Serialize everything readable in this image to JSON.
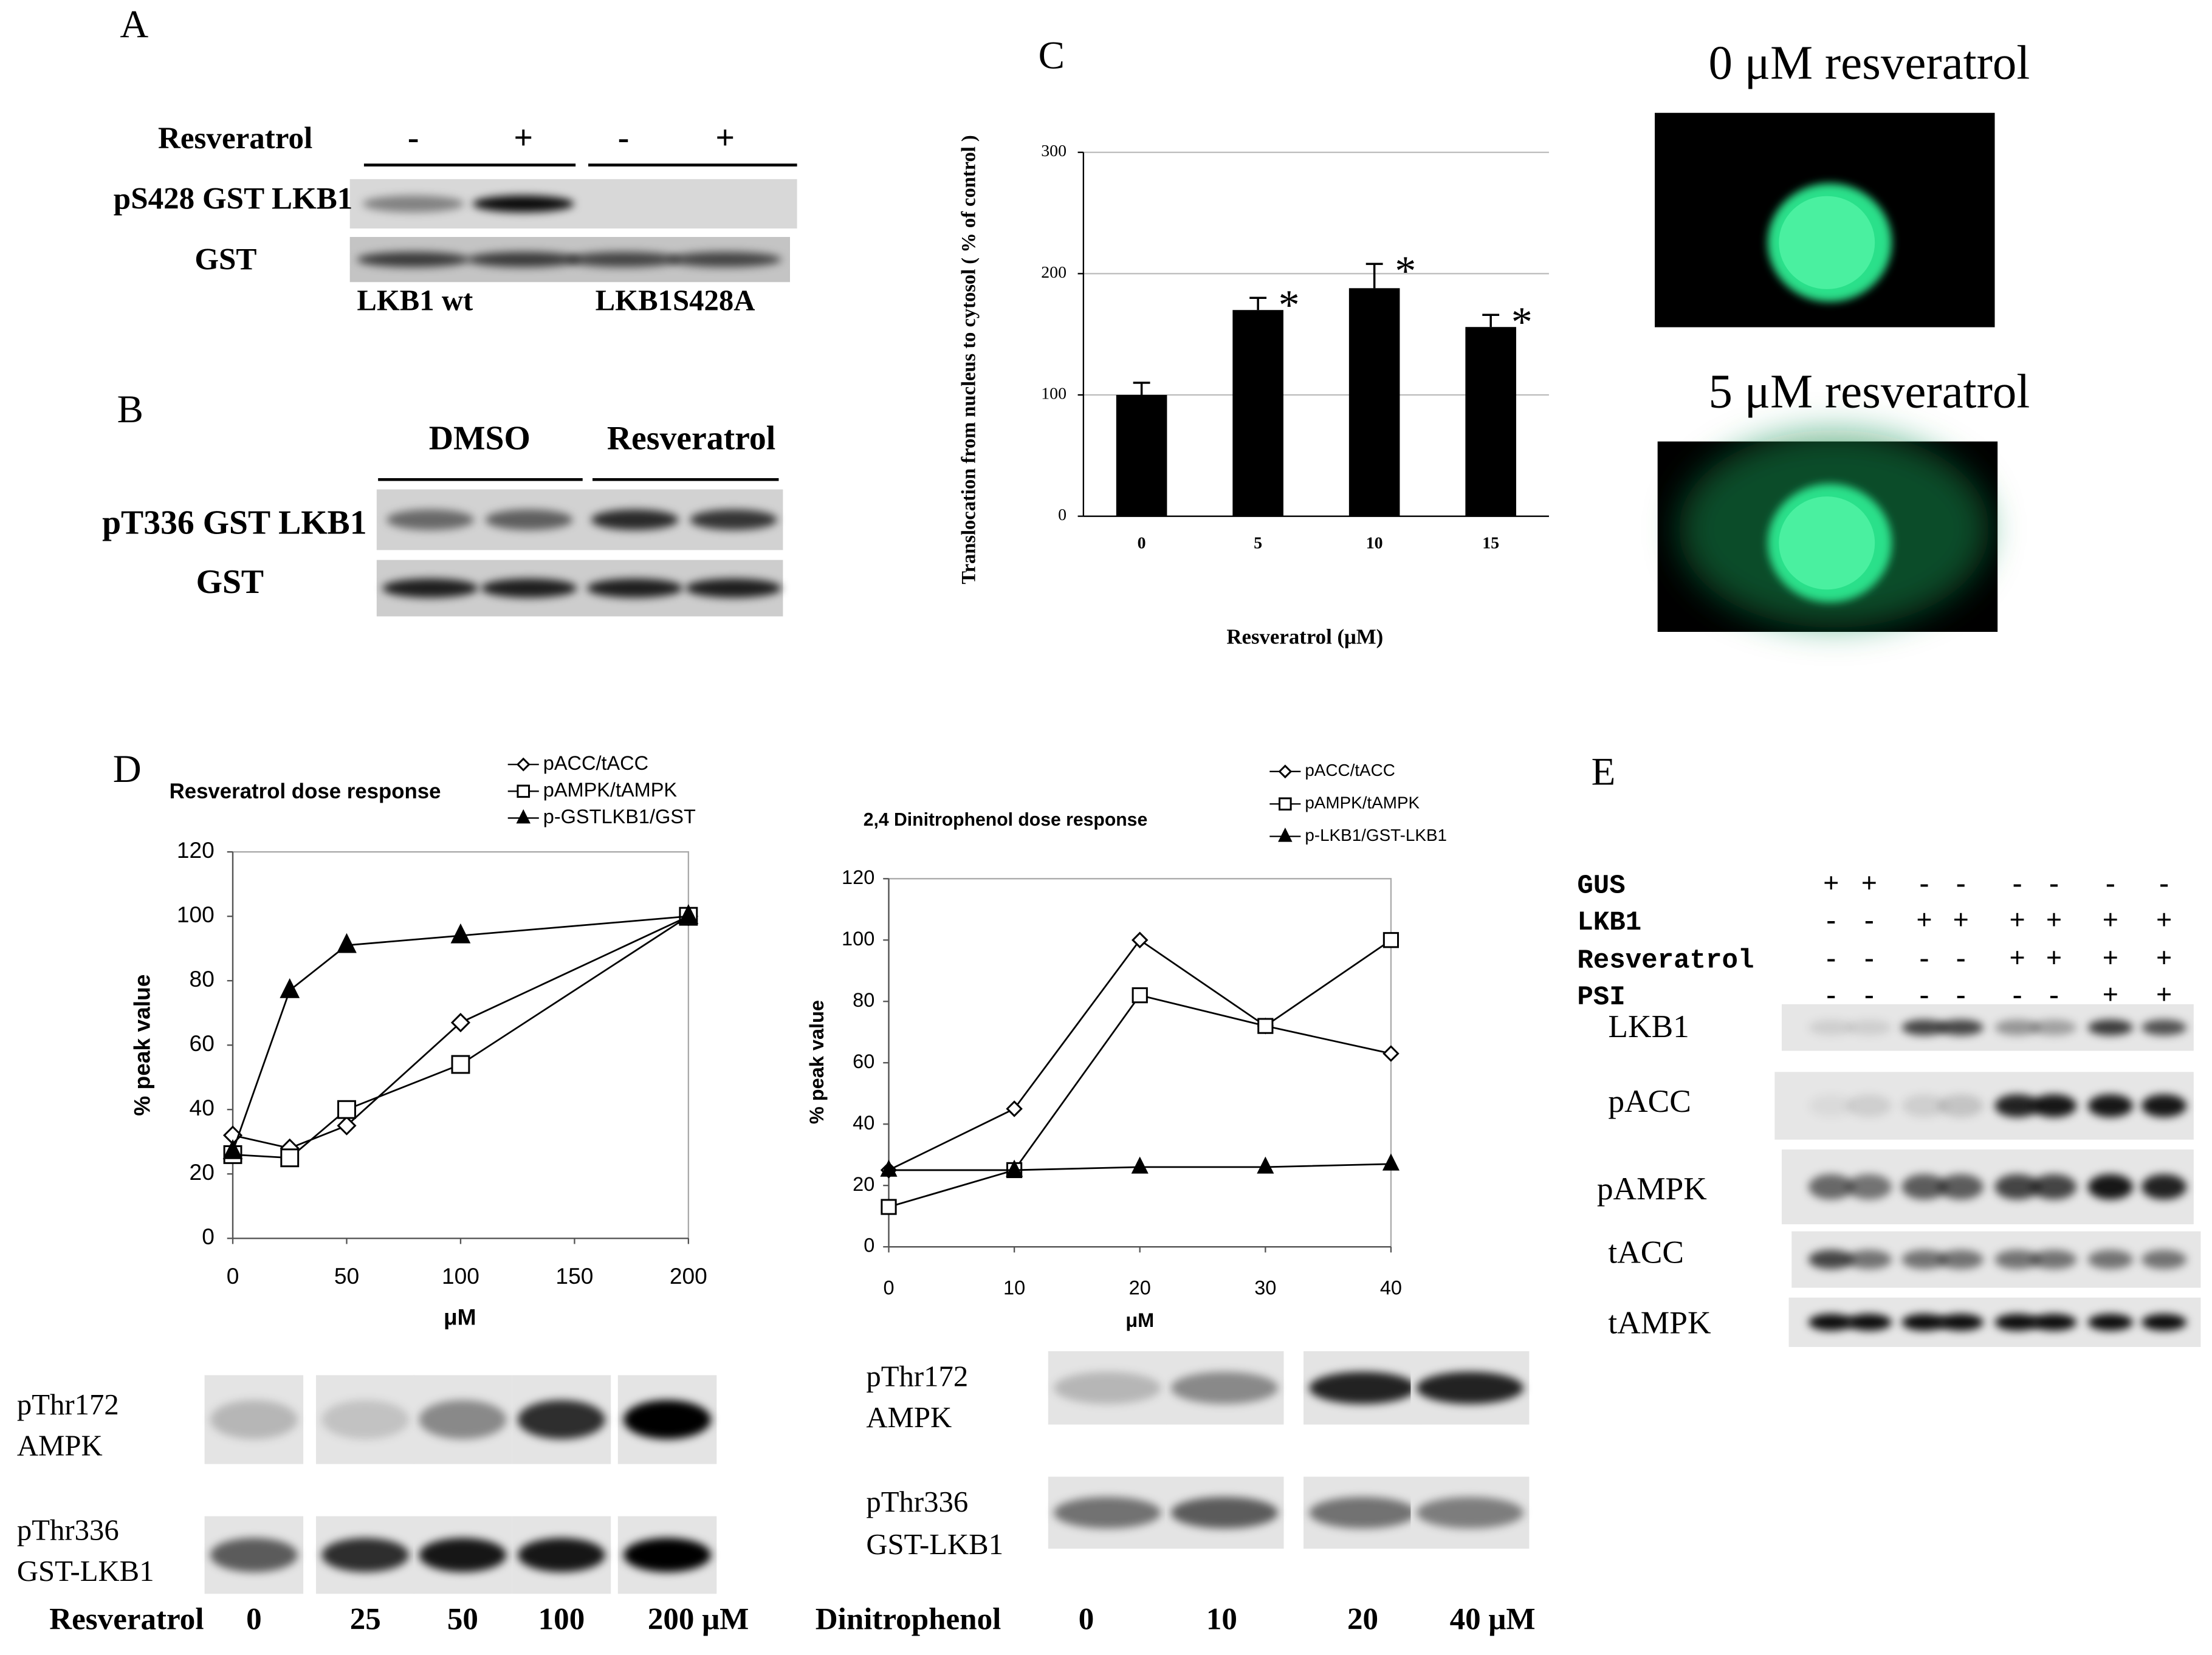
{
  "chart_data": [
    {
      "type": "bar",
      "x_label": "Resveratrol (μM)",
      "y_label": "Translocation from nucleus to cytosol ( % of control )",
      "categories": [
        "0",
        "5",
        "10",
        "15"
      ],
      "values": [
        100,
        170,
        188,
        156
      ],
      "errors": [
        10,
        10,
        20,
        10
      ],
      "annotations": [
        null,
        "*",
        "*",
        "*"
      ],
      "color": "#000000",
      "ylim": [
        0,
        300
      ],
      "yticks": [
        0,
        100,
        200,
        300
      ],
      "grid": true
    },
    {
      "type": "line",
      "title": "Resveratrol dose response",
      "x_label": "μM",
      "y_label": "% peak value",
      "x": [
        0,
        25,
        50,
        100,
        200
      ],
      "xlim": [
        0,
        200
      ],
      "xticks": [
        0,
        50,
        100,
        150,
        200
      ],
      "ylim": [
        0,
        120
      ],
      "yticks": [
        0,
        20,
        40,
        60,
        80,
        100,
        120
      ],
      "grid": false,
      "legend": "top-right",
      "series": [
        {
          "name": "pACC/tACC",
          "color": "#000000",
          "marker": "diamond",
          "values": [
            32,
            28,
            35,
            67,
            100
          ]
        },
        {
          "name": "pAMPK/tAMPK",
          "color": "#000000",
          "marker": "square",
          "values": [
            26,
            25,
            40,
            54,
            100
          ]
        },
        {
          "name": "p-GSTLKB1/GST",
          "color": "#000000",
          "marker": "triangle",
          "values": [
            27,
            77,
            91,
            94,
            100
          ]
        }
      ]
    },
    {
      "type": "line",
      "title": "2,4 Dinitrophenol dose response",
      "x_label": "μM",
      "y_label": "% peak value",
      "x": [
        0,
        10,
        20,
        30,
        40
      ],
      "xlim": [
        0,
        40
      ],
      "xticks": [
        0,
        10,
        20,
        30,
        40
      ],
      "ylim": [
        0,
        120
      ],
      "yticks": [
        0,
        20,
        40,
        60,
        80,
        100,
        120
      ],
      "grid": false,
      "legend": "top-right",
      "series": [
        {
          "name": "pACC/tACC",
          "color": "#000000",
          "marker": "diamond",
          "values": [
            25,
            45,
            100,
            72,
            63
          ]
        },
        {
          "name": "pAMPK/tAMPK",
          "color": "#000000",
          "marker": "square",
          "values": [
            13,
            25,
            82,
            72,
            100
          ]
        },
        {
          "name": "p-LKB1/GST-LKB1",
          "color": "#000000",
          "marker": "triangle",
          "values": [
            25,
            25,
            26,
            26,
            27
          ]
        }
      ]
    }
  ],
  "panel_labels": [
    "A",
    "B",
    "C",
    "D",
    "E"
  ],
  "panel_a": {
    "treatment": "Resveratrol",
    "lanes": [
      "-",
      "+",
      "-",
      "+"
    ],
    "rows": [
      "pS428 GST LKB1",
      "GST"
    ],
    "groups": [
      "LKB1 wt",
      "LKB1S428A"
    ]
  },
  "panel_b": {
    "groups": [
      "DMSO",
      "Resveratrol"
    ],
    "rows": [
      "pT336 GST LKB1",
      "GST"
    ]
  },
  "panel_c_images": [
    "0 μM resveratrol",
    "5 μM resveratrol"
  ],
  "panel_d_blots": [
    {
      "rows": [
        [
          "pThr172",
          "AMPK"
        ],
        [
          "pThr336",
          "GST-LKB1"
        ]
      ],
      "treatment": "Resveratrol",
      "lanes": [
        "0",
        "25",
        "50",
        "100",
        "200 μM"
      ]
    },
    {
      "rows": [
        [
          "pThr172",
          "AMPK"
        ],
        [
          "pThr336",
          "GST-LKB1"
        ]
      ],
      "treatment": "Dinitrophenol",
      "lanes": [
        "0",
        "10",
        "20",
        "40 μM"
      ]
    }
  ],
  "panel_e": {
    "conditions": [
      {
        "name": "GUS",
        "signs": [
          "+",
          "+",
          "-",
          "-",
          "-",
          "-",
          "-",
          "-"
        ]
      },
      {
        "name": "LKB1",
        "signs": [
          "-",
          "-",
          "+",
          "+",
          "+",
          "+",
          "+",
          "+"
        ]
      },
      {
        "name": "Resveratrol",
        "signs": [
          "-",
          "-",
          "-",
          "-",
          "+",
          "+",
          "+",
          "+"
        ]
      },
      {
        "name": "PSI",
        "signs": [
          "-",
          "-",
          "-",
          "-",
          "-",
          "-",
          "+",
          "+"
        ]
      }
    ],
    "rows": [
      "LKB1",
      "pACC",
      "pAMPK",
      "tACC",
      "tAMPK"
    ]
  }
}
